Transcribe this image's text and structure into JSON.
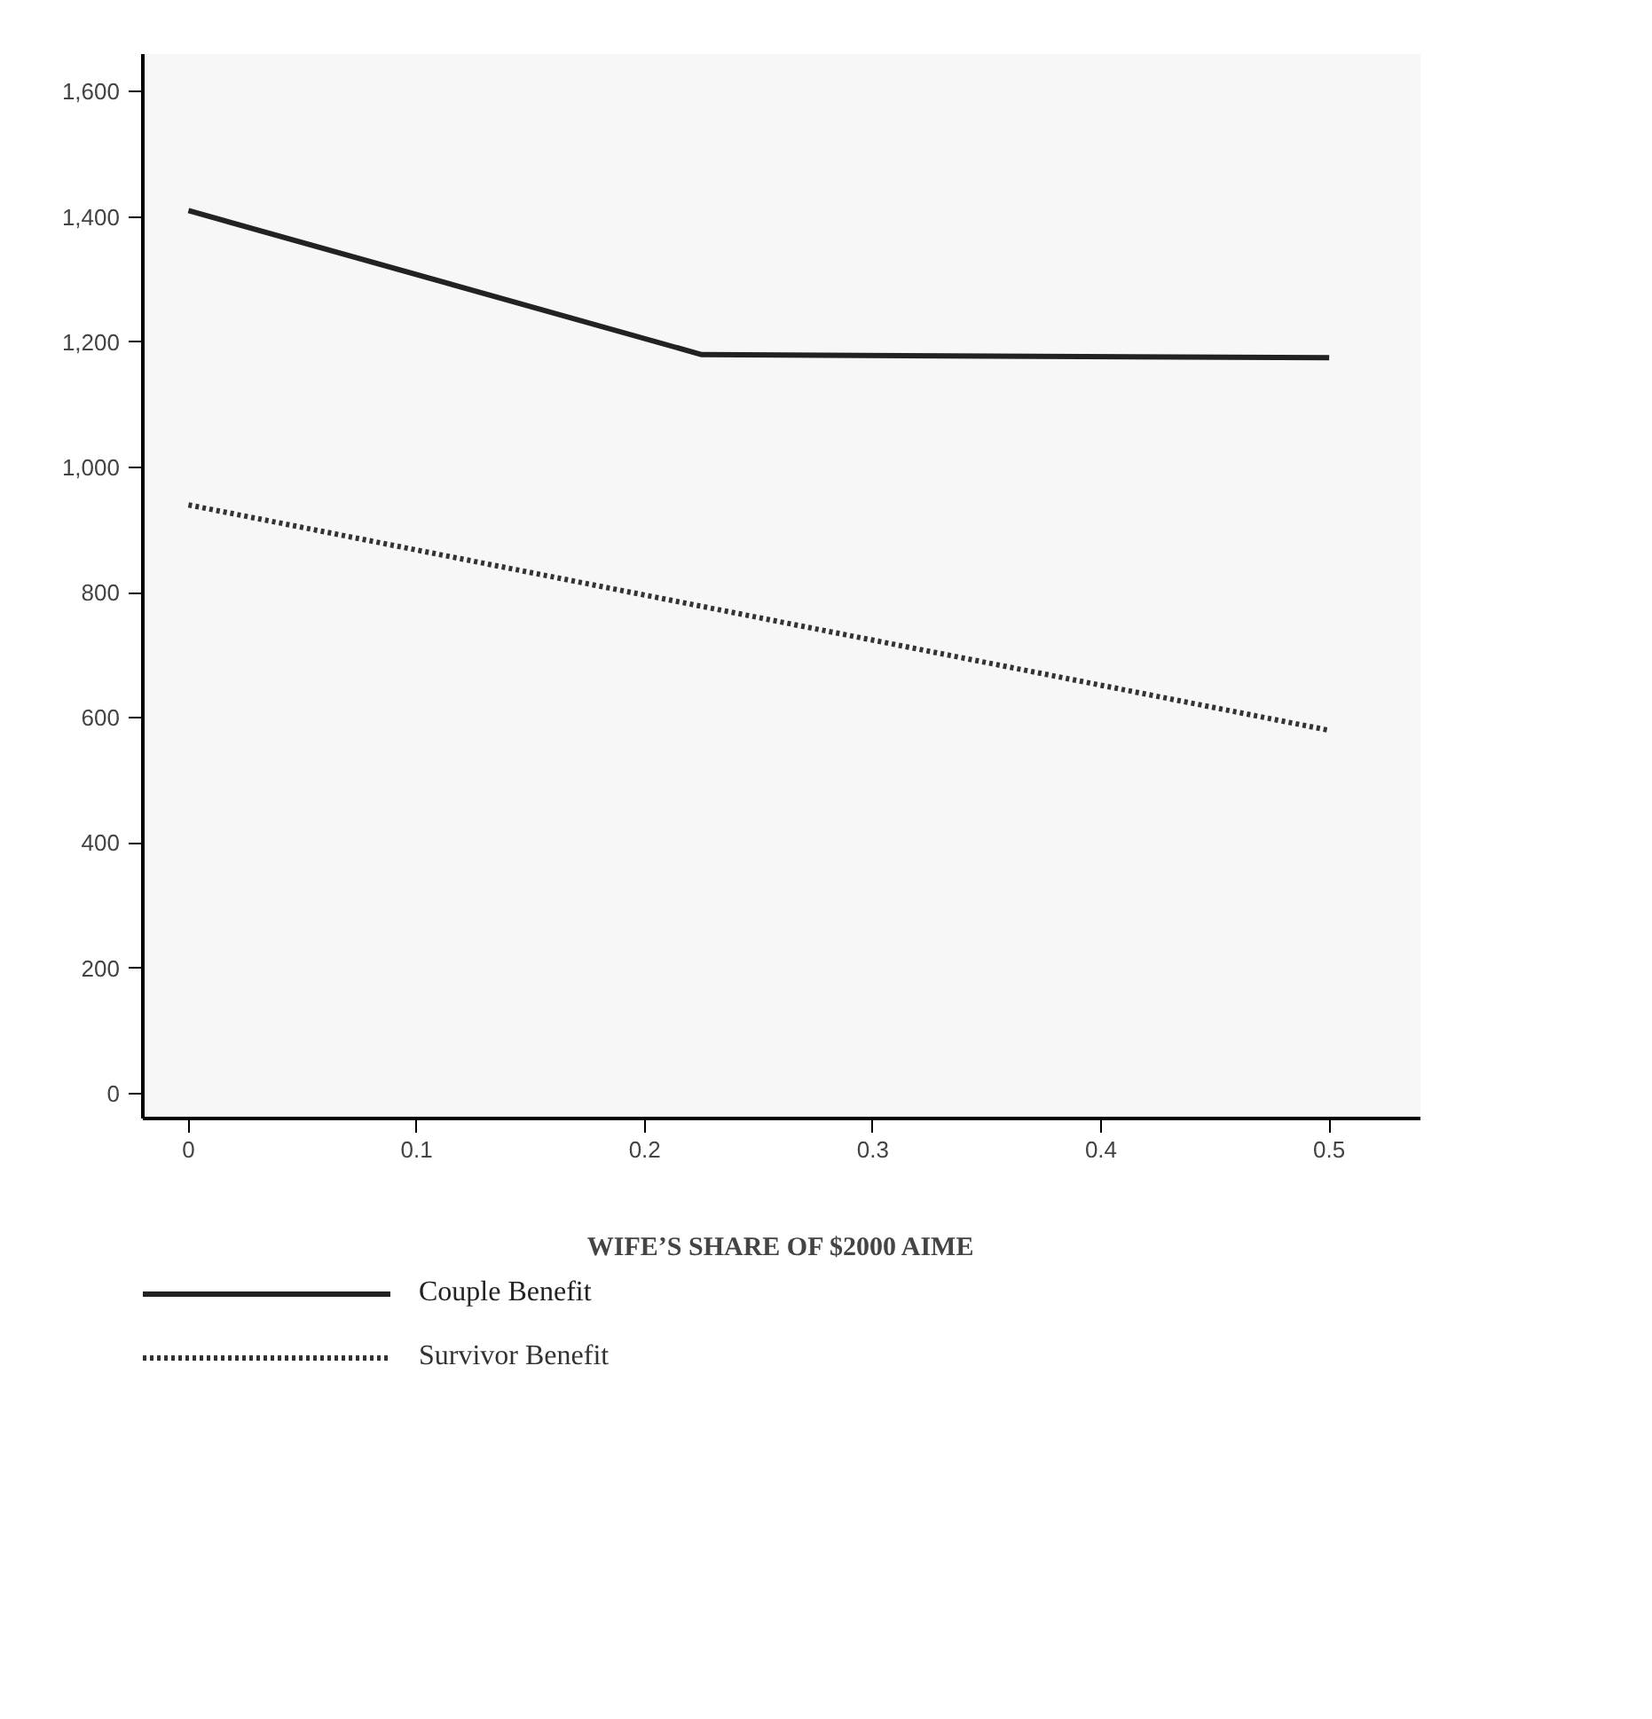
{
  "chart_data": {
    "type": "line",
    "xlabel": "WIFE’S SHARE OF $2000 AIME",
    "x": [
      0,
      0.225,
      0.5
    ],
    "series": [
      {
        "name": "Couple Benefit",
        "color": "#222222",
        "values": [
          1410,
          1180,
          1175
        ],
        "line_style": "solid"
      },
      {
        "name": "Survivor Benefit",
        "color": "#333333",
        "values": [
          940,
          778,
          580
        ],
        "line_style": "dotted"
      }
    ],
    "xlim": [
      -0.02,
      0.54
    ],
    "ylim": [
      -40,
      1660
    ],
    "xticks": [
      0,
      0.1,
      0.2,
      0.3,
      0.4,
      0.5
    ],
    "yticks": [
      {
        "value": 0,
        "label": "0"
      },
      {
        "value": 200,
        "label": "200"
      },
      {
        "value": 400,
        "label": "400"
      },
      {
        "value": 600,
        "label": "600"
      },
      {
        "value": 800,
        "label": "800"
      },
      {
        "value": 1000,
        "label": "1,000"
      },
      {
        "value": 1200,
        "label": "1,200"
      },
      {
        "value": 1400,
        "label": "1,400"
      },
      {
        "value": 1600,
        "label": "1,600"
      }
    ],
    "grid": false,
    "legend": "bottom"
  }
}
